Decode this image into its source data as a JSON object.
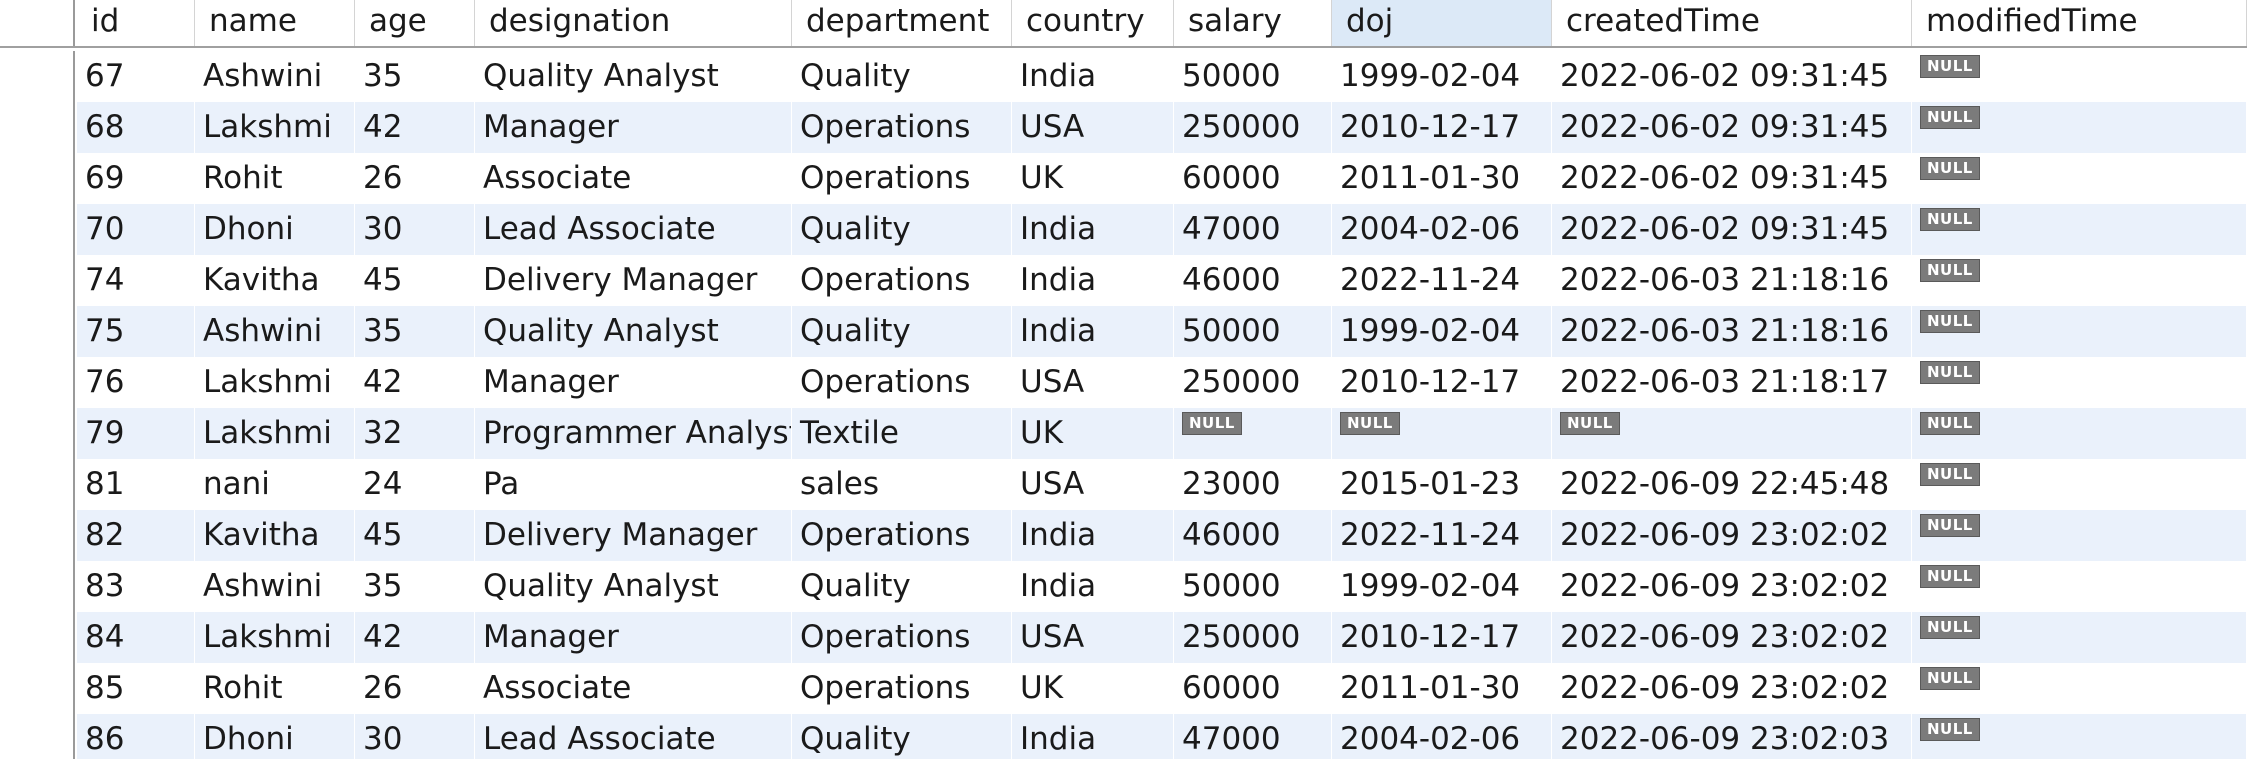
{
  "grid": {
    "columns": [
      "id",
      "name",
      "age",
      "designation",
      "department",
      "country",
      "salary",
      "doj",
      "createdTime",
      "modifiedTime"
    ],
    "sorted_column": "doj",
    "null_label": "NULL",
    "rows": [
      {
        "id": "67",
        "name": "Ashwini",
        "age": "35",
        "designation": "Quality Analyst",
        "department": "Quality",
        "country": "India",
        "salary": "50000",
        "doj": "1999-02-04",
        "createdTime": "2022-06-02 09:31:45",
        "modifiedTime": null
      },
      {
        "id": "68",
        "name": "Lakshmi",
        "age": "42",
        "designation": "Manager",
        "department": "Operations",
        "country": "USA",
        "salary": "250000",
        "doj": "2010-12-17",
        "createdTime": "2022-06-02 09:31:45",
        "modifiedTime": null
      },
      {
        "id": "69",
        "name": "Rohit",
        "age": "26",
        "designation": "Associate",
        "department": "Operations",
        "country": "UK",
        "salary": "60000",
        "doj": "2011-01-30",
        "createdTime": "2022-06-02 09:31:45",
        "modifiedTime": null
      },
      {
        "id": "70",
        "name": "Dhoni",
        "age": "30",
        "designation": "Lead Associate",
        "department": "Quality",
        "country": "India",
        "salary": "47000",
        "doj": "2004-02-06",
        "createdTime": "2022-06-02 09:31:45",
        "modifiedTime": null
      },
      {
        "id": "74",
        "name": "Kavitha",
        "age": "45",
        "designation": "Delivery Manager",
        "department": "Operations",
        "country": "India",
        "salary": "46000",
        "doj": "2022-11-24",
        "createdTime": "2022-06-03 21:18:16",
        "modifiedTime": null
      },
      {
        "id": "75",
        "name": "Ashwini",
        "age": "35",
        "designation": "Quality Analyst",
        "department": "Quality",
        "country": "India",
        "salary": "50000",
        "doj": "1999-02-04",
        "createdTime": "2022-06-03 21:18:16",
        "modifiedTime": null
      },
      {
        "id": "76",
        "name": "Lakshmi",
        "age": "42",
        "designation": "Manager",
        "department": "Operations",
        "country": "USA",
        "salary": "250000",
        "doj": "2010-12-17",
        "createdTime": "2022-06-03 21:18:17",
        "modifiedTime": null
      },
      {
        "id": "79",
        "name": "Lakshmi",
        "age": "32",
        "designation": "Programmer Analyst",
        "department": "Textile",
        "country": "UK",
        "salary": null,
        "doj": null,
        "createdTime": null,
        "modifiedTime": null
      },
      {
        "id": "81",
        "name": "nani",
        "age": "24",
        "designation": "Pa",
        "department": "sales",
        "country": "USA",
        "salary": "23000",
        "doj": "2015-01-23",
        "createdTime": "2022-06-09 22:45:48",
        "modifiedTime": null
      },
      {
        "id": "82",
        "name": "Kavitha",
        "age": "45",
        "designation": "Delivery Manager",
        "department": "Operations",
        "country": "India",
        "salary": "46000",
        "doj": "2022-11-24",
        "createdTime": "2022-06-09 23:02:02",
        "modifiedTime": null
      },
      {
        "id": "83",
        "name": "Ashwini",
        "age": "35",
        "designation": "Quality Analyst",
        "department": "Quality",
        "country": "India",
        "salary": "50000",
        "doj": "1999-02-04",
        "createdTime": "2022-06-09 23:02:02",
        "modifiedTime": null
      },
      {
        "id": "84",
        "name": "Lakshmi",
        "age": "42",
        "designation": "Manager",
        "department": "Operations",
        "country": "USA",
        "salary": "250000",
        "doj": "2010-12-17",
        "createdTime": "2022-06-09 23:02:02",
        "modifiedTime": null
      },
      {
        "id": "85",
        "name": "Rohit",
        "age": "26",
        "designation": "Associate",
        "department": "Operations",
        "country": "UK",
        "salary": "60000",
        "doj": "2011-01-30",
        "createdTime": "2022-06-09 23:02:02",
        "modifiedTime": null
      },
      {
        "id": "86",
        "name": "Dhoni",
        "age": "30",
        "designation": "Lead Associate",
        "department": "Quality",
        "country": "India",
        "salary": "47000",
        "doj": "2004-02-06",
        "createdTime": "2022-06-09 23:02:03",
        "modifiedTime": null
      }
    ]
  },
  "colors": {
    "alt_row": "#eaf1fb",
    "sorted_header": "#dce9f7",
    "null_badge": "#7b7b7b"
  }
}
